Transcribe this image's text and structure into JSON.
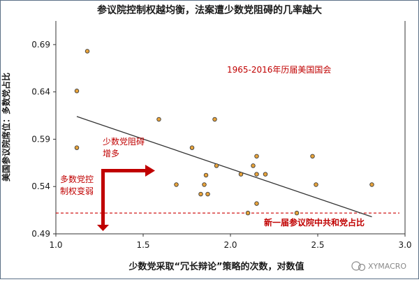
{
  "chart_data": {
    "type": "scatter",
    "title": "参议院控制权越均衡，法案遭少数党阻碍的几率越大",
    "xlabel": "少数党采取“冗长辩论”策略的次数，对数值",
    "ylabel": "美国参议院席位：多数党占比",
    "xlim": [
      1.0,
      3.0
    ],
    "ylim": [
      0.49,
      0.715
    ],
    "xticks": [
      "1.0",
      "1.5",
      "2.0",
      "2.5",
      "3.0"
    ],
    "yticks": [
      "0.49",
      "0.54",
      "0.59",
      "0.64",
      "0.69"
    ],
    "grid": false,
    "points": [
      {
        "x": 1.18,
        "y": 0.683
      },
      {
        "x": 1.12,
        "y": 0.641
      },
      {
        "x": 1.12,
        "y": 0.581
      },
      {
        "x": 1.59,
        "y": 0.611
      },
      {
        "x": 1.69,
        "y": 0.542
      },
      {
        "x": 1.78,
        "y": 0.581
      },
      {
        "x": 1.83,
        "y": 0.532
      },
      {
        "x": 1.85,
        "y": 0.542
      },
      {
        "x": 1.86,
        "y": 0.552
      },
      {
        "x": 1.87,
        "y": 0.532
      },
      {
        "x": 1.91,
        "y": 0.611
      },
      {
        "x": 1.92,
        "y": 0.562
      },
      {
        "x": 2.06,
        "y": 0.553
      },
      {
        "x": 2.1,
        "y": 0.512
      },
      {
        "x": 2.13,
        "y": 0.562
      },
      {
        "x": 2.15,
        "y": 0.572
      },
      {
        "x": 2.15,
        "y": 0.553
      },
      {
        "x": 2.15,
        "y": 0.522
      },
      {
        "x": 2.2,
        "y": 0.553
      },
      {
        "x": 2.38,
        "y": 0.512
      },
      {
        "x": 2.47,
        "y": 0.572
      },
      {
        "x": 2.49,
        "y": 0.542
      },
      {
        "x": 2.81,
        "y": 0.542
      }
    ],
    "trendline": {
      "x": [
        1.12,
        2.81
      ],
      "y": [
        0.614,
        0.508
      ]
    },
    "reference_line": {
      "y": 0.512,
      "label": "新一届参议院中共和党占比",
      "style": "dashed",
      "color": "#cc0000"
    },
    "annotations": {
      "note": "1965-2016年历届美国国会",
      "arrow_up_label": [
        "少数党阻碍",
        "增多"
      ],
      "arrow_down_label": [
        "多数党控",
        "制权变弱"
      ]
    },
    "watermark": "XYMACRO",
    "colors": {
      "point_fill": "#e8a33a",
      "point_stroke": "#3c3c3c",
      "accent_red": "#c00000",
      "trend": "#333333",
      "frame": "#5b6f86"
    }
  }
}
